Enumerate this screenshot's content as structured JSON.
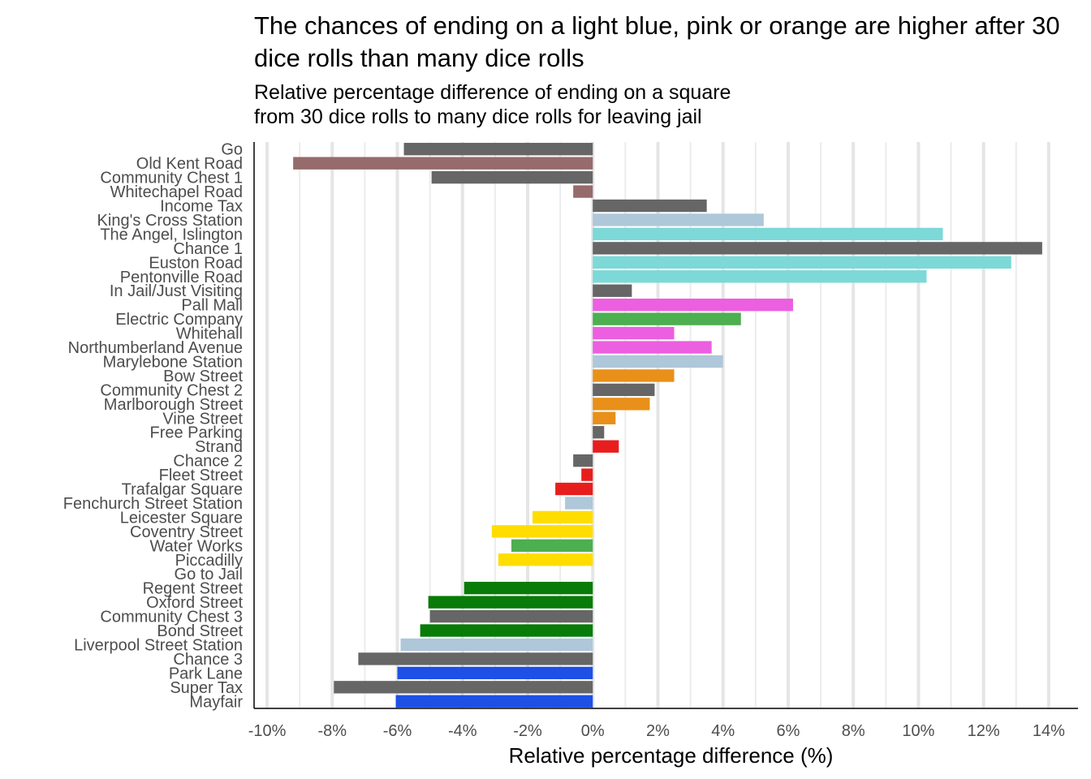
{
  "title": "The chances of ending on a light blue, pink or orange are higher after 30 dice rolls than many dice rolls",
  "subtitle": "Relative percentage difference of ending on a square\n from 30 dice rolls to many dice rolls for leaving jail",
  "chart_data": {
    "type": "bar",
    "orientation": "horizontal",
    "xlabel": "Relative percentage difference (%)",
    "ylabel": "",
    "xlim": [
      -10.4,
      14.9
    ],
    "xticks": [
      -10,
      -8,
      -6,
      -4,
      -2,
      0,
      2,
      4,
      6,
      8,
      10,
      12,
      14
    ],
    "xtick_labels": [
      "-10%",
      "-8%",
      "-6%",
      "-4%",
      "-2%",
      "0%",
      "2%",
      "4%",
      "6%",
      "8%",
      "10%",
      "12%",
      "14%"
    ],
    "grid": "vertical major and minor",
    "categories": [
      "Go",
      "Old Kent Road",
      "Community Chest 1",
      "Whitechapel Road",
      "Income Tax",
      "King's Cross Station",
      "The Angel, Islington",
      "Chance 1",
      "Euston Road",
      "Pentonville Road",
      "In Jail/Just Visiting",
      "Pall Mall",
      "Electric Company",
      "Whitehall",
      "Northumberland Avenue",
      "Marylebone Station",
      "Bow Street",
      "Community Chest 2",
      "Marlborough Street",
      "Vine Street",
      "Free Parking",
      "Strand",
      "Chance 2",
      "Fleet Street",
      "Trafalgar Square",
      "Fenchurch Street Station",
      "Leicester Square",
      "Coventry Street",
      "Water Works",
      "Piccadilly",
      "Go to Jail",
      "Regent Street",
      "Oxford Street",
      "Community Chest 3",
      "Bond Street",
      "Liverpool Street Station",
      "Chance 3",
      "Park Lane",
      "Super Tax",
      "Mayfair"
    ],
    "values": [
      -5.8,
      -9.2,
      -4.95,
      -0.6,
      3.5,
      5.25,
      10.75,
      13.8,
      12.85,
      10.25,
      1.2,
      6.15,
      4.55,
      2.5,
      3.65,
      4.0,
      2.5,
      1.9,
      1.75,
      0.7,
      0.35,
      0.8,
      -0.6,
      -0.35,
      -1.15,
      -0.85,
      -1.85,
      -3.1,
      -2.5,
      -2.9,
      0,
      -3.95,
      -5.05,
      -5.0,
      -5.3,
      -5.9,
      -7.2,
      -6.0,
      -7.95,
      -6.05
    ],
    "colors": [
      "#666666",
      "#966b6b",
      "#666666",
      "#966b6b",
      "#666666",
      "#aec7d9",
      "#7dd8d8",
      "#666666",
      "#7dd8d8",
      "#7dd8d8",
      "#666666",
      "#ec5fe0",
      "#4caf50",
      "#ec5fe0",
      "#ec5fe0",
      "#aec7d9",
      "#e89019",
      "#666666",
      "#e89019",
      "#e89019",
      "#666666",
      "#e81e1e",
      "#666666",
      "#e81e1e",
      "#e81e1e",
      "#aec7d9",
      "#ffdd00",
      "#ffdd00",
      "#4caf50",
      "#ffdd00",
      "#666666",
      "#087b08",
      "#087b08",
      "#666666",
      "#087b08",
      "#aec7d9",
      "#666666",
      "#1e50e6",
      "#666666",
      "#1e50e6"
    ]
  }
}
